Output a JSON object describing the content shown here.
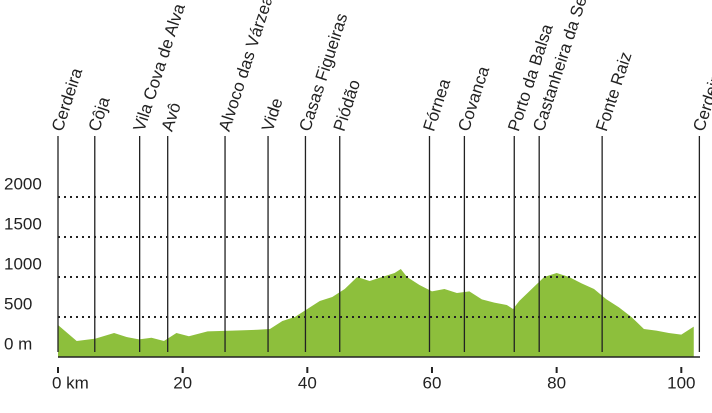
{
  "chart_data": {
    "type": "area",
    "color": "#8dbf3c",
    "x": [
      0,
      3,
      6,
      9,
      11,
      13,
      15,
      17,
      19,
      21,
      24,
      28,
      32,
      34,
      36,
      38,
      40,
      42,
      44,
      46,
      48,
      50,
      52,
      54,
      55,
      56,
      58,
      60,
      62,
      64,
      66,
      68,
      70,
      72,
      73,
      74,
      76,
      78,
      80,
      82,
      84,
      86,
      88,
      90,
      92,
      94,
      96,
      98,
      100,
      102
    ],
    "values": [
      400,
      200,
      230,
      300,
      250,
      220,
      240,
      200,
      300,
      260,
      320,
      330,
      340,
      350,
      450,
      500,
      600,
      700,
      750,
      850,
      1000,
      950,
      1000,
      1050,
      1100,
      1000,
      900,
      820,
      850,
      800,
      820,
      720,
      680,
      650,
      600,
      700,
      850,
      1000,
      1050,
      1000,
      920,
      850,
      720,
      620,
      500,
      350,
      330,
      300,
      280,
      380
    ],
    "xlim": [
      0,
      103
    ],
    "ylim": [
      0,
      2000
    ],
    "xticks": [
      {
        "value": 0,
        "label": "0 km"
      },
      20,
      40,
      60,
      80,
      100
    ],
    "yticks": [
      {
        "value": 0,
        "label": "0 m"
      },
      500,
      1000,
      1500,
      2000
    ],
    "grid": true,
    "places": [
      {
        "name": "Cerdeira",
        "km": 0
      },
      {
        "name": "Côja",
        "km": 5.9
      },
      {
        "name": "Vila Cova de Alva",
        "km": 13.1
      },
      {
        "name": "Avô",
        "km": 17.6
      },
      {
        "name": "Alvoco das Várzeas",
        "km": 26.8
      },
      {
        "name": "Vide",
        "km": 33.7
      },
      {
        "name": "Casas Figueiras",
        "km": 39.7
      },
      {
        "name": "Piódão",
        "km": 45.2
      },
      {
        "name": "Fórnea",
        "km": 59.6
      },
      {
        "name": "Covanca",
        "km": 65.2
      },
      {
        "name": "Porto da Balsa",
        "km": 73.2
      },
      {
        "name": "Castanheira da Serra",
        "km": 77.2
      },
      {
        "name": "Fonte Raiz",
        "km": 87.3
      },
      {
        "name": "Cerdeira",
        "km": 102.9
      }
    ]
  }
}
